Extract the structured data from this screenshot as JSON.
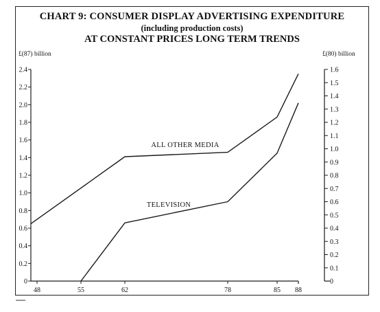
{
  "page": {
    "title_line1": "CHART 9:   CONSUMER DISPLAY ADVERTISING EXPENDITURE",
    "title_line2": "(including production costs)",
    "title_line3": "AT CONSTANT PRICES LONG TERM TRENDS",
    "left_axis_unit": "£(87) billion",
    "right_axis_unit": "£(80) billion"
  },
  "chart_data": {
    "type": "line",
    "title": "CONSUMER DISPLAY ADVERTISING EXPENDITURE (including production costs) AT CONSTANT PRICES LONG TERM TRENDS",
    "xlabel": "",
    "ylabel": "£(87) billion",
    "y2label": "£(80) billion",
    "x_ticks": [
      "48",
      "55",
      "62",
      "78",
      "85",
      "88"
    ],
    "xlim": [
      47,
      88
    ],
    "ylim": [
      0,
      2.4
    ],
    "y_ticks": [
      0,
      0.2,
      0.4,
      0.6,
      0.8,
      1.0,
      1.2,
      1.4,
      1.6,
      1.8,
      2.0,
      2.2,
      2.4
    ],
    "y_tick_labels": [
      "0",
      "0.2",
      "0.4",
      "0.6",
      "0.8",
      "1.0",
      "1.2",
      "1.4",
      "1.6",
      "1.8",
      "2.0",
      "2.2",
      "2.4"
    ],
    "y2lim": [
      0,
      1.6
    ],
    "y2_ticks": [
      0,
      0.1,
      0.2,
      0.3,
      0.4,
      0.5,
      0.6,
      0.7,
      0.8,
      0.9,
      1.0,
      1.1,
      1.2,
      1.3,
      1.4,
      1.5,
      1.6
    ],
    "y2_tick_labels": [
      "0",
      "0.1",
      "0.2",
      "0.3",
      "0.4",
      "0.5",
      "0.6",
      "0.7",
      "0.8",
      "0.9",
      "1.0",
      "1.1",
      "1.2",
      "1.3",
      "1.4",
      "1.5",
      "1.6"
    ],
    "grid": false,
    "series": [
      {
        "name": "ALL OTHER MEDIA",
        "x": [
          47,
          62,
          78,
          85,
          88
        ],
        "y": [
          0.65,
          1.41,
          1.46,
          1.86,
          2.35
        ]
      },
      {
        "name": "TELEVISION",
        "x": [
          55,
          62,
          78,
          85,
          88
        ],
        "y": [
          0,
          0.66,
          0.9,
          1.45,
          2.02
        ]
      }
    ]
  }
}
